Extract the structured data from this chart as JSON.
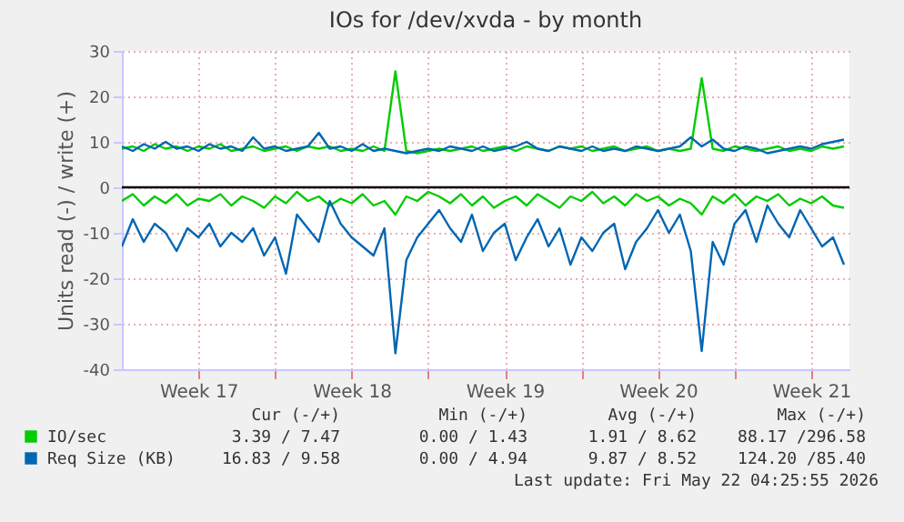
{
  "chart_data": {
    "type": "line",
    "title": "IOs for /dev/xvda - by month",
    "ylabel": "Units read (-) / write (+)",
    "x": [
      "2026-04-20T00:00",
      "2026-04-20T12:00",
      "2026-04-21T00:00",
      "2026-04-21T12:00",
      "2026-04-22T00:00",
      "2026-04-22T12:00",
      "2026-04-23T00:00",
      "2026-04-23T12:00",
      "2026-04-24T00:00",
      "2026-04-24T12:00",
      "2026-04-25T00:00",
      "2026-04-25T12:00",
      "2026-04-26T00:00",
      "2026-04-26T12:00",
      "2026-04-27T00:00",
      "2026-04-27T12:00",
      "2026-04-28T00:00",
      "2026-04-28T12:00",
      "2026-04-29T00:00",
      "2026-04-29T12:00",
      "2026-04-30T00:00",
      "2026-04-30T12:00",
      "2026-05-01T00:00",
      "2026-05-01T12:00",
      "2026-05-02T00:00",
      "2026-05-02T12:00",
      "2026-05-03T00:00",
      "2026-05-03T12:00",
      "2026-05-04T00:00",
      "2026-05-04T12:00",
      "2026-05-05T00:00",
      "2026-05-05T12:00",
      "2026-05-06T00:00",
      "2026-05-06T12:00",
      "2026-05-07T00:00",
      "2026-05-07T12:00",
      "2026-05-08T00:00",
      "2026-05-08T12:00",
      "2026-05-09T00:00",
      "2026-05-09T12:00",
      "2026-05-10T00:00",
      "2026-05-10T12:00",
      "2026-05-11T00:00",
      "2026-05-11T12:00",
      "2026-05-12T00:00",
      "2026-05-12T12:00",
      "2026-05-13T00:00",
      "2026-05-13T12:00",
      "2026-05-14T00:00",
      "2026-05-14T12:00",
      "2026-05-15T00:00",
      "2026-05-15T12:00",
      "2026-05-16T00:00",
      "2026-05-16T12:00",
      "2026-05-17T00:00",
      "2026-05-17T12:00",
      "2026-05-18T00:00",
      "2026-05-18T12:00",
      "2026-05-19T00:00",
      "2026-05-19T12:00",
      "2026-05-20T00:00",
      "2026-05-20T12:00",
      "2026-05-21T00:00",
      "2026-05-21T12:00",
      "2026-05-22T00:00",
      "2026-05-22T12:00",
      "2026-05-23T00:00"
    ],
    "xlim": [
      "2026-04-20T00:00",
      "2026-05-23T06:00"
    ],
    "xticks": [
      {
        "value": "2026-04-23T12:00",
        "label": "Week 17"
      },
      {
        "value": "2026-04-27T00:00",
        "label": null
      },
      {
        "value": "2026-04-30T12:00",
        "label": "Week 18"
      },
      {
        "value": "2026-05-04T00:00",
        "label": null
      },
      {
        "value": "2026-05-07T12:00",
        "label": "Week 19"
      },
      {
        "value": "2026-05-11T00:00",
        "label": null
      },
      {
        "value": "2026-05-14T12:00",
        "label": "Week 20"
      },
      {
        "value": "2026-05-18T00:00",
        "label": null
      },
      {
        "value": "2026-05-21T12:00",
        "label": "Week 21"
      }
    ],
    "ylim": [
      -40,
      30
    ],
    "yticks": [
      -40,
      -30,
      -20,
      -10,
      0,
      10,
      20,
      30
    ],
    "grid": true,
    "legend": "bottom",
    "ref_lines": [
      {
        "axis": "y",
        "value": 0,
        "label": null,
        "color": "#000000"
      }
    ],
    "series": [
      {
        "name": "IO/sec",
        "color": "#00cc00",
        "values": [
          8.5,
          9,
          8,
          9.5,
          8.5,
          9,
          8,
          9,
          8.5,
          9.5,
          8,
          8.5,
          9,
          8,
          8.5,
          9,
          8,
          9,
          8.5,
          9,
          8,
          8.5,
          8,
          9,
          8,
          25.5,
          8,
          7.5,
          8,
          8.5,
          8,
          8.5,
          9,
          8,
          8.5,
          9,
          8,
          9,
          8.5,
          8,
          9,
          8.5,
          9,
          8,
          8.5,
          9,
          8,
          8.5,
          9,
          8,
          8.5,
          8,
          8.5,
          24,
          8.5,
          8,
          9,
          8.5,
          8,
          8.5,
          9,
          8,
          8.5,
          8,
          9,
          8.5,
          9
        ]
      },
      {
        "color": "#00cc00",
        "values": [
          -3,
          -1.5,
          -4,
          -2,
          -3.5,
          -1.5,
          -4,
          -2.5,
          -3,
          -1.5,
          -4,
          -2,
          -3,
          -4.5,
          -2,
          -3.5,
          -1,
          -3,
          -2,
          -4,
          -2.5,
          -3.5,
          -1.5,
          -4,
          -3,
          -6,
          -2,
          -3,
          -1,
          -2,
          -3.5,
          -1.5,
          -4,
          -2,
          -4.5,
          -3,
          -2,
          -4,
          -1.5,
          -3,
          -4.5,
          -2,
          -3,
          -1,
          -3.5,
          -2,
          -4,
          -1.5,
          -3,
          -2,
          -4,
          -2.5,
          -3.5,
          -6,
          -2,
          -3.5,
          -1.5,
          -4,
          -2,
          -3,
          -1.5,
          -4,
          -2.5,
          -3.5,
          -2,
          -4,
          -4.5
        ]
      },
      {
        "name": "Req Size (KB)",
        "color": "#0066b3",
        "values": [
          9,
          8,
          9.5,
          8.5,
          10,
          8.5,
          9,
          8,
          9.5,
          8.5,
          9,
          8,
          11,
          8.5,
          9,
          8,
          8.5,
          9,
          12,
          8.5,
          9,
          8,
          9.5,
          8,
          8.5,
          8,
          7.5,
          8,
          8.5,
          8,
          9,
          8.5,
          8,
          9,
          8,
          8.5,
          9,
          10,
          8.5,
          8,
          9,
          8.5,
          8,
          9,
          8,
          8.5,
          8,
          9,
          8.5,
          8,
          8.5,
          9,
          11,
          9,
          10.5,
          8.5,
          8,
          9,
          8.5,
          7.5,
          8,
          8.5,
          9,
          8.5,
          9.5,
          10,
          10.5
        ]
      },
      {
        "color": "#0066b3",
        "values": [
          -13,
          -7,
          -12,
          -8,
          -10,
          -14,
          -9,
          -11,
          -8,
          -13,
          -10,
          -12,
          -9,
          -15,
          -11,
          -19,
          -6,
          -9,
          -12,
          -3,
          -8,
          -11,
          -13,
          -15,
          -9,
          -36.5,
          -16,
          -11,
          -8,
          -5,
          -9,
          -12,
          -6,
          -14,
          -10,
          -8,
          -16,
          -11,
          -7,
          -13,
          -9,
          -17,
          -11,
          -14,
          -10,
          -8,
          -18,
          -12,
          -9,
          -5,
          -10,
          -6,
          -14,
          -36,
          -12,
          -17,
          -8,
          -5,
          -12,
          -4,
          -8,
          -11,
          -5,
          -9,
          -13,
          -11,
          -17
        ]
      }
    ],
    "annotations": [
      "Cur (-/+)",
      "Min (-/+)",
      "Avg (-/+)",
      "Max (-/+)",
      "3.39 / 7.47",
      "0.00 / 1.43",
      "1.91 / 8.62",
      "88.17 /296.58",
      "16.83 / 9.58",
      "0.00 / 4.94",
      "9.87 / 8.52",
      "124.20 /85.40",
      "Last update: Fri May 22 04:25:55 2026"
    ]
  }
}
